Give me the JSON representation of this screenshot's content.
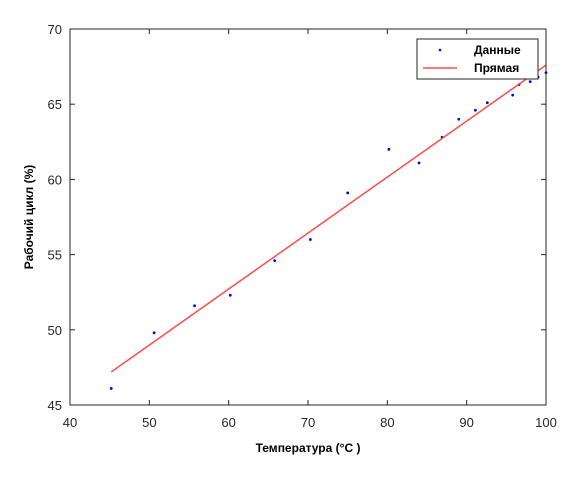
{
  "chart_data": {
    "type": "scatter",
    "title": "",
    "xlabel": "Температура (°C )",
    "ylabel": "Рабочий цикл (%)",
    "xlim": [
      40,
      100
    ],
    "ylim": [
      45,
      70
    ],
    "xticks": [
      40,
      50,
      60,
      70,
      80,
      90,
      100
    ],
    "yticks": [
      45,
      50,
      55,
      60,
      65,
      70
    ],
    "grid": false,
    "legend": "top-right",
    "series": [
      {
        "name": "Данные",
        "kind": "scatter",
        "color": "#0000ff",
        "points": [
          [
            45.2,
            46.1
          ],
          [
            50.6,
            49.8
          ],
          [
            55.7,
            51.6
          ],
          [
            60.2,
            52.3
          ],
          [
            65.8,
            54.6
          ],
          [
            70.3,
            56.0
          ],
          [
            75.0,
            59.1
          ],
          [
            80.2,
            62.0
          ],
          [
            84.0,
            61.1
          ],
          [
            86.9,
            62.8
          ],
          [
            89.0,
            64.0
          ],
          [
            91.1,
            64.6
          ],
          [
            92.6,
            65.1
          ],
          [
            95.8,
            65.6
          ],
          [
            96.6,
            66.3
          ],
          [
            98.0,
            66.5
          ],
          [
            99.0,
            66.8
          ],
          [
            100.0,
            67.1
          ]
        ]
      },
      {
        "name": "Прямая",
        "kind": "line",
        "color": "#ff4d4d",
        "points": [
          [
            45.2,
            47.2
          ],
          [
            100.0,
            67.6
          ]
        ]
      }
    ]
  }
}
